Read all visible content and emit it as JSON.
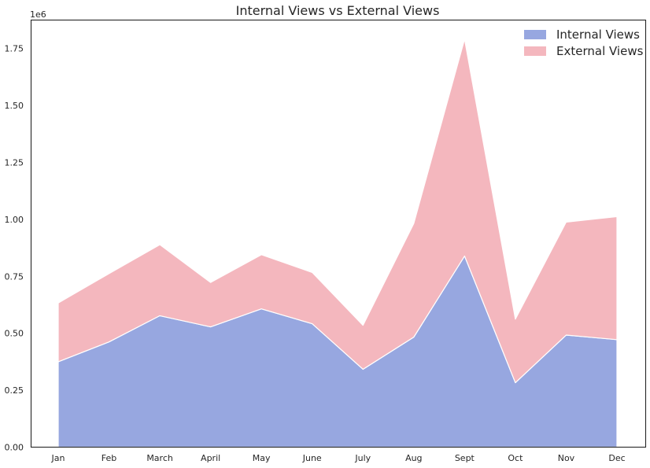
{
  "chart_data": {
    "type": "area",
    "stacked": true,
    "title": "Internal Views vs External Views",
    "xlabel": "",
    "ylabel": "",
    "y_offset_label": "1e6",
    "categories": [
      "Jan",
      "Feb",
      "March",
      "April",
      "May",
      "June",
      "July",
      "Aug",
      "Sept",
      "Oct",
      "Nov",
      "Dec"
    ],
    "ylim": [
      0,
      1875000
    ],
    "yticks": [
      0,
      250000,
      500000,
      750000,
      1000000,
      1250000,
      1500000,
      1750000
    ],
    "ytick_labels": [
      "0.00",
      "0.25",
      "0.50",
      "0.75",
      "1.00",
      "1.25",
      "1.50",
      "1.75"
    ],
    "series": [
      {
        "name": "Internal Views",
        "color": "#97a7e0",
        "values": [
          375000,
          462000,
          577000,
          528000,
          607000,
          542000,
          342000,
          483000,
          839000,
          283000,
          492000,
          472000
        ]
      },
      {
        "name": "External Views",
        "color": "#f4b7be",
        "values": [
          258000,
          300000,
          312000,
          195000,
          238000,
          225000,
          193000,
          499000,
          952000,
          279000,
          496000,
          540000
        ]
      }
    ],
    "legend_position": "top-right",
    "grid": false
  }
}
